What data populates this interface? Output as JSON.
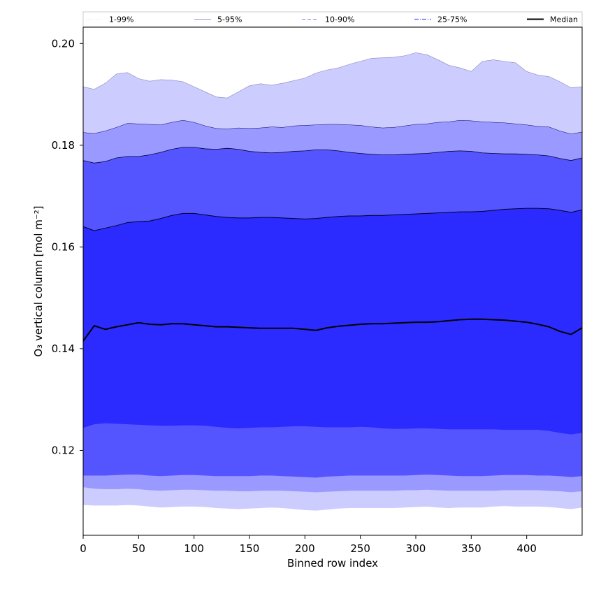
{
  "chart_data": {
    "type": "area",
    "title": "",
    "xlabel": "Binned row index",
    "ylabel": "O₃ vertical column [mol m⁻²]",
    "xlim": [
      0,
      450
    ],
    "ylim": [
      0.1033,
      0.2032
    ],
    "xticks": [
      0,
      50,
      100,
      150,
      200,
      250,
      300,
      350,
      400
    ],
    "yticks": [
      0.12,
      0.14,
      0.16,
      0.18,
      0.2
    ],
    "ytick_labels": [
      "0.12",
      "0.14",
      "0.16",
      "0.18",
      "0.20"
    ],
    "grid": false,
    "legend_position": "top",
    "x": [
      0,
      10,
      20,
      30,
      40,
      50,
      60,
      70,
      80,
      90,
      100,
      110,
      120,
      130,
      140,
      150,
      160,
      170,
      180,
      190,
      200,
      210,
      220,
      230,
      240,
      250,
      260,
      270,
      280,
      290,
      300,
      310,
      320,
      330,
      340,
      350,
      360,
      370,
      380,
      390,
      400,
      410,
      420,
      430,
      440,
      450
    ],
    "series": [
      {
        "name": "1-99%",
        "color": "#ccccff",
        "style": "dotted",
        "lower": [
          0.1093,
          0.1092,
          0.1092,
          0.1092,
          0.1093,
          0.1092,
          0.109,
          0.1088,
          0.1089,
          0.109,
          0.109,
          0.1089,
          0.1087,
          0.1086,
          0.1085,
          0.1086,
          0.1087,
          0.1088,
          0.1087,
          0.1085,
          0.1083,
          0.1082,
          0.1084,
          0.1086,
          0.1087,
          0.1087,
          0.1087,
          0.1087,
          0.1087,
          0.1088,
          0.1089,
          0.109,
          0.1088,
          0.1087,
          0.1088,
          0.1088,
          0.1088,
          0.109,
          0.1091,
          0.109,
          0.109,
          0.109,
          0.1089,
          0.1087,
          0.1085,
          0.1088
        ],
        "upper": [
          0.1915,
          0.191,
          0.1922,
          0.194,
          0.1943,
          0.1931,
          0.1926,
          0.1929,
          0.1928,
          0.1925,
          0.1915,
          0.1905,
          0.1895,
          0.1893,
          0.1905,
          0.1917,
          0.1921,
          0.1918,
          0.1922,
          0.1927,
          0.1932,
          0.1942,
          0.1948,
          0.1952,
          0.1959,
          0.1965,
          0.1971,
          0.1972,
          0.1973,
          0.1976,
          0.1982,
          0.1978,
          0.1968,
          0.1957,
          0.1952,
          0.1945,
          0.1965,
          0.1968,
          0.1965,
          0.1962,
          0.1945,
          0.1938,
          0.1935,
          0.1925,
          0.1913,
          0.1915
        ]
      },
      {
        "name": "5-95%",
        "color": "#9999ff",
        "style": "solid-thin",
        "lower": [
          0.1128,
          0.1125,
          0.1124,
          0.1124,
          0.1125,
          0.1124,
          0.1122,
          0.1121,
          0.1122,
          0.1123,
          0.1123,
          0.1122,
          0.1121,
          0.1121,
          0.112,
          0.112,
          0.1121,
          0.1121,
          0.1121,
          0.112,
          0.1119,
          0.1118,
          0.1119,
          0.112,
          0.1121,
          0.1121,
          0.1121,
          0.1121,
          0.1121,
          0.1122,
          0.1122,
          0.1123,
          0.1122,
          0.1121,
          0.1121,
          0.1121,
          0.1121,
          0.1121,
          0.1122,
          0.1122,
          0.1122,
          0.1122,
          0.1121,
          0.112,
          0.1118,
          0.112
        ],
        "upper": [
          0.1825,
          0.1823,
          0.1828,
          0.1835,
          0.1843,
          0.1842,
          0.1841,
          0.184,
          0.1845,
          0.1849,
          0.1845,
          0.1838,
          0.1833,
          0.1832,
          0.1834,
          0.1833,
          0.1834,
          0.1836,
          0.1835,
          0.1838,
          0.1839,
          0.184,
          0.1841,
          0.1841,
          0.184,
          0.1839,
          0.1836,
          0.1834,
          0.1835,
          0.1838,
          0.1841,
          0.1842,
          0.1845,
          0.1846,
          0.1849,
          0.1848,
          0.1846,
          0.1845,
          0.1844,
          0.1842,
          0.184,
          0.1837,
          0.1836,
          0.1828,
          0.1822,
          0.1826
        ]
      },
      {
        "name": "10-90%",
        "color": "#5555ff",
        "style": "dashed",
        "lower": [
          0.1151,
          0.1151,
          0.1151,
          0.1152,
          0.1153,
          0.1153,
          0.1151,
          0.115,
          0.1151,
          0.1152,
          0.1152,
          0.1151,
          0.115,
          0.115,
          0.115,
          0.115,
          0.1151,
          0.1151,
          0.115,
          0.1149,
          0.1148,
          0.1147,
          0.1149,
          0.115,
          0.1151,
          0.1151,
          0.1151,
          0.1151,
          0.1151,
          0.1151,
          0.1152,
          0.1153,
          0.1152,
          0.1151,
          0.115,
          0.115,
          0.115,
          0.1151,
          0.1152,
          0.1152,
          0.1152,
          0.1151,
          0.1151,
          0.115,
          0.1148,
          0.115
        ],
        "upper": [
          0.177,
          0.1765,
          0.1768,
          0.1775,
          0.1778,
          0.1778,
          0.1781,
          0.1786,
          0.1792,
          0.1796,
          0.1796,
          0.1793,
          0.1792,
          0.1794,
          0.1792,
          0.1788,
          0.1786,
          0.1785,
          0.1786,
          0.1788,
          0.1789,
          0.1791,
          0.1791,
          0.1789,
          0.1786,
          0.1784,
          0.1782,
          0.1781,
          0.1781,
          0.1782,
          0.1783,
          0.1784,
          0.1786,
          0.1788,
          0.1789,
          0.1788,
          0.1785,
          0.1784,
          0.1783,
          0.1783,
          0.1782,
          0.1781,
          0.1779,
          0.1774,
          0.177,
          0.1775
        ]
      },
      {
        "name": "25-75%",
        "color": "#2b2bff",
        "style": "dashdot",
        "lower": [
          0.1245,
          0.1252,
          0.1254,
          0.1253,
          0.1252,
          0.1251,
          0.125,
          0.1249,
          0.1249,
          0.125,
          0.125,
          0.1249,
          0.1247,
          0.1245,
          0.1244,
          0.1245,
          0.1246,
          0.1246,
          0.1247,
          0.1248,
          0.1248,
          0.1247,
          0.1246,
          0.1246,
          0.1246,
          0.1247,
          0.1246,
          0.1244,
          0.1243,
          0.1243,
          0.1244,
          0.1244,
          0.1243,
          0.1242,
          0.1242,
          0.1242,
          0.1242,
          0.1242,
          0.1241,
          0.1241,
          0.1241,
          0.1241,
          0.1239,
          0.1235,
          0.1232,
          0.1235
        ],
        "upper": [
          0.164,
          0.1632,
          0.1637,
          0.1642,
          0.1648,
          0.165,
          0.1651,
          0.1656,
          0.1662,
          0.1666,
          0.1666,
          0.1663,
          0.166,
          0.1658,
          0.1657,
          0.1657,
          0.1658,
          0.1658,
          0.1657,
          0.1656,
          0.1655,
          0.1656,
          0.1658,
          0.166,
          0.1661,
          0.1661,
          0.1662,
          0.1662,
          0.1663,
          0.1664,
          0.1665,
          0.1666,
          0.1667,
          0.1668,
          0.1669,
          0.1669,
          0.167,
          0.1672,
          0.1674,
          0.1675,
          0.1676,
          0.1676,
          0.1675,
          0.1672,
          0.1668,
          0.1673
        ]
      },
      {
        "name": "Median",
        "color": "#000000",
        "style": "line",
        "values": [
          0.1415,
          0.1445,
          0.1438,
          0.1443,
          0.1447,
          0.1451,
          0.1448,
          0.1447,
          0.1449,
          0.1449,
          0.1447,
          0.1445,
          0.1443,
          0.1443,
          0.1442,
          0.1441,
          0.144,
          0.144,
          0.144,
          0.144,
          0.1438,
          0.1436,
          0.1441,
          0.1444,
          0.1446,
          0.1448,
          0.1449,
          0.1449,
          0.145,
          0.1451,
          0.1452,
          0.1452,
          0.1453,
          0.1455,
          0.1457,
          0.1458,
          0.1458,
          0.1457,
          0.1456,
          0.1454,
          0.1452,
          0.1448,
          0.1443,
          0.1434,
          0.1428,
          0.1441
        ]
      }
    ]
  }
}
